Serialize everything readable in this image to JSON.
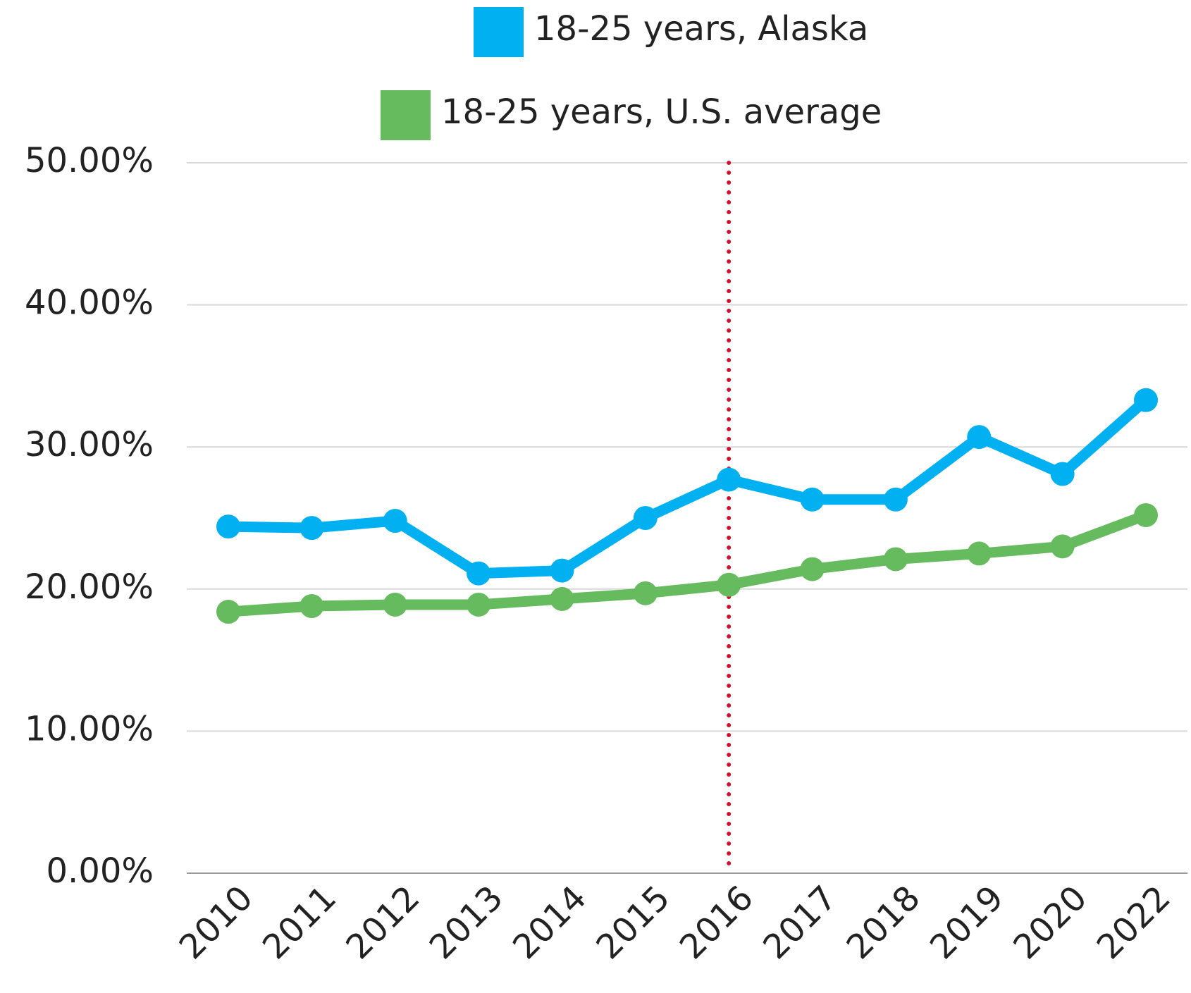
{
  "chart_data": {
    "type": "line",
    "categories": [
      "2010",
      "2011",
      "2012",
      "2013",
      "2014",
      "2015",
      "2016",
      "2017",
      "2018",
      "2019",
      "2020",
      "2022"
    ],
    "series": [
      {
        "name": "18-25 years, Alaska",
        "color": "#00b0f0",
        "values": [
          24.4,
          24.3,
          24.8,
          21.1,
          21.3,
          25.0,
          27.7,
          26.3,
          26.3,
          30.7,
          28.1,
          33.3
        ]
      },
      {
        "name": "18-25 years, U.S. average",
        "color": "#66bb5f",
        "values": [
          18.4,
          18.8,
          18.9,
          18.9,
          19.3,
          19.7,
          20.3,
          21.4,
          22.1,
          22.5,
          23.0,
          25.2
        ]
      }
    ],
    "ylim": [
      0,
      50
    ],
    "yticks": [
      {
        "value": 0,
        "label": "0.00%"
      },
      {
        "value": 10,
        "label": "10.00%"
      },
      {
        "value": 20,
        "label": "20.00%"
      },
      {
        "value": 30,
        "label": "30.00%"
      },
      {
        "value": 40,
        "label": "40.00%"
      },
      {
        "value": 50,
        "label": "50.00%"
      }
    ],
    "grid": true,
    "legend": "top",
    "vline": {
      "category": "2016",
      "color": "#d0112b"
    }
  }
}
